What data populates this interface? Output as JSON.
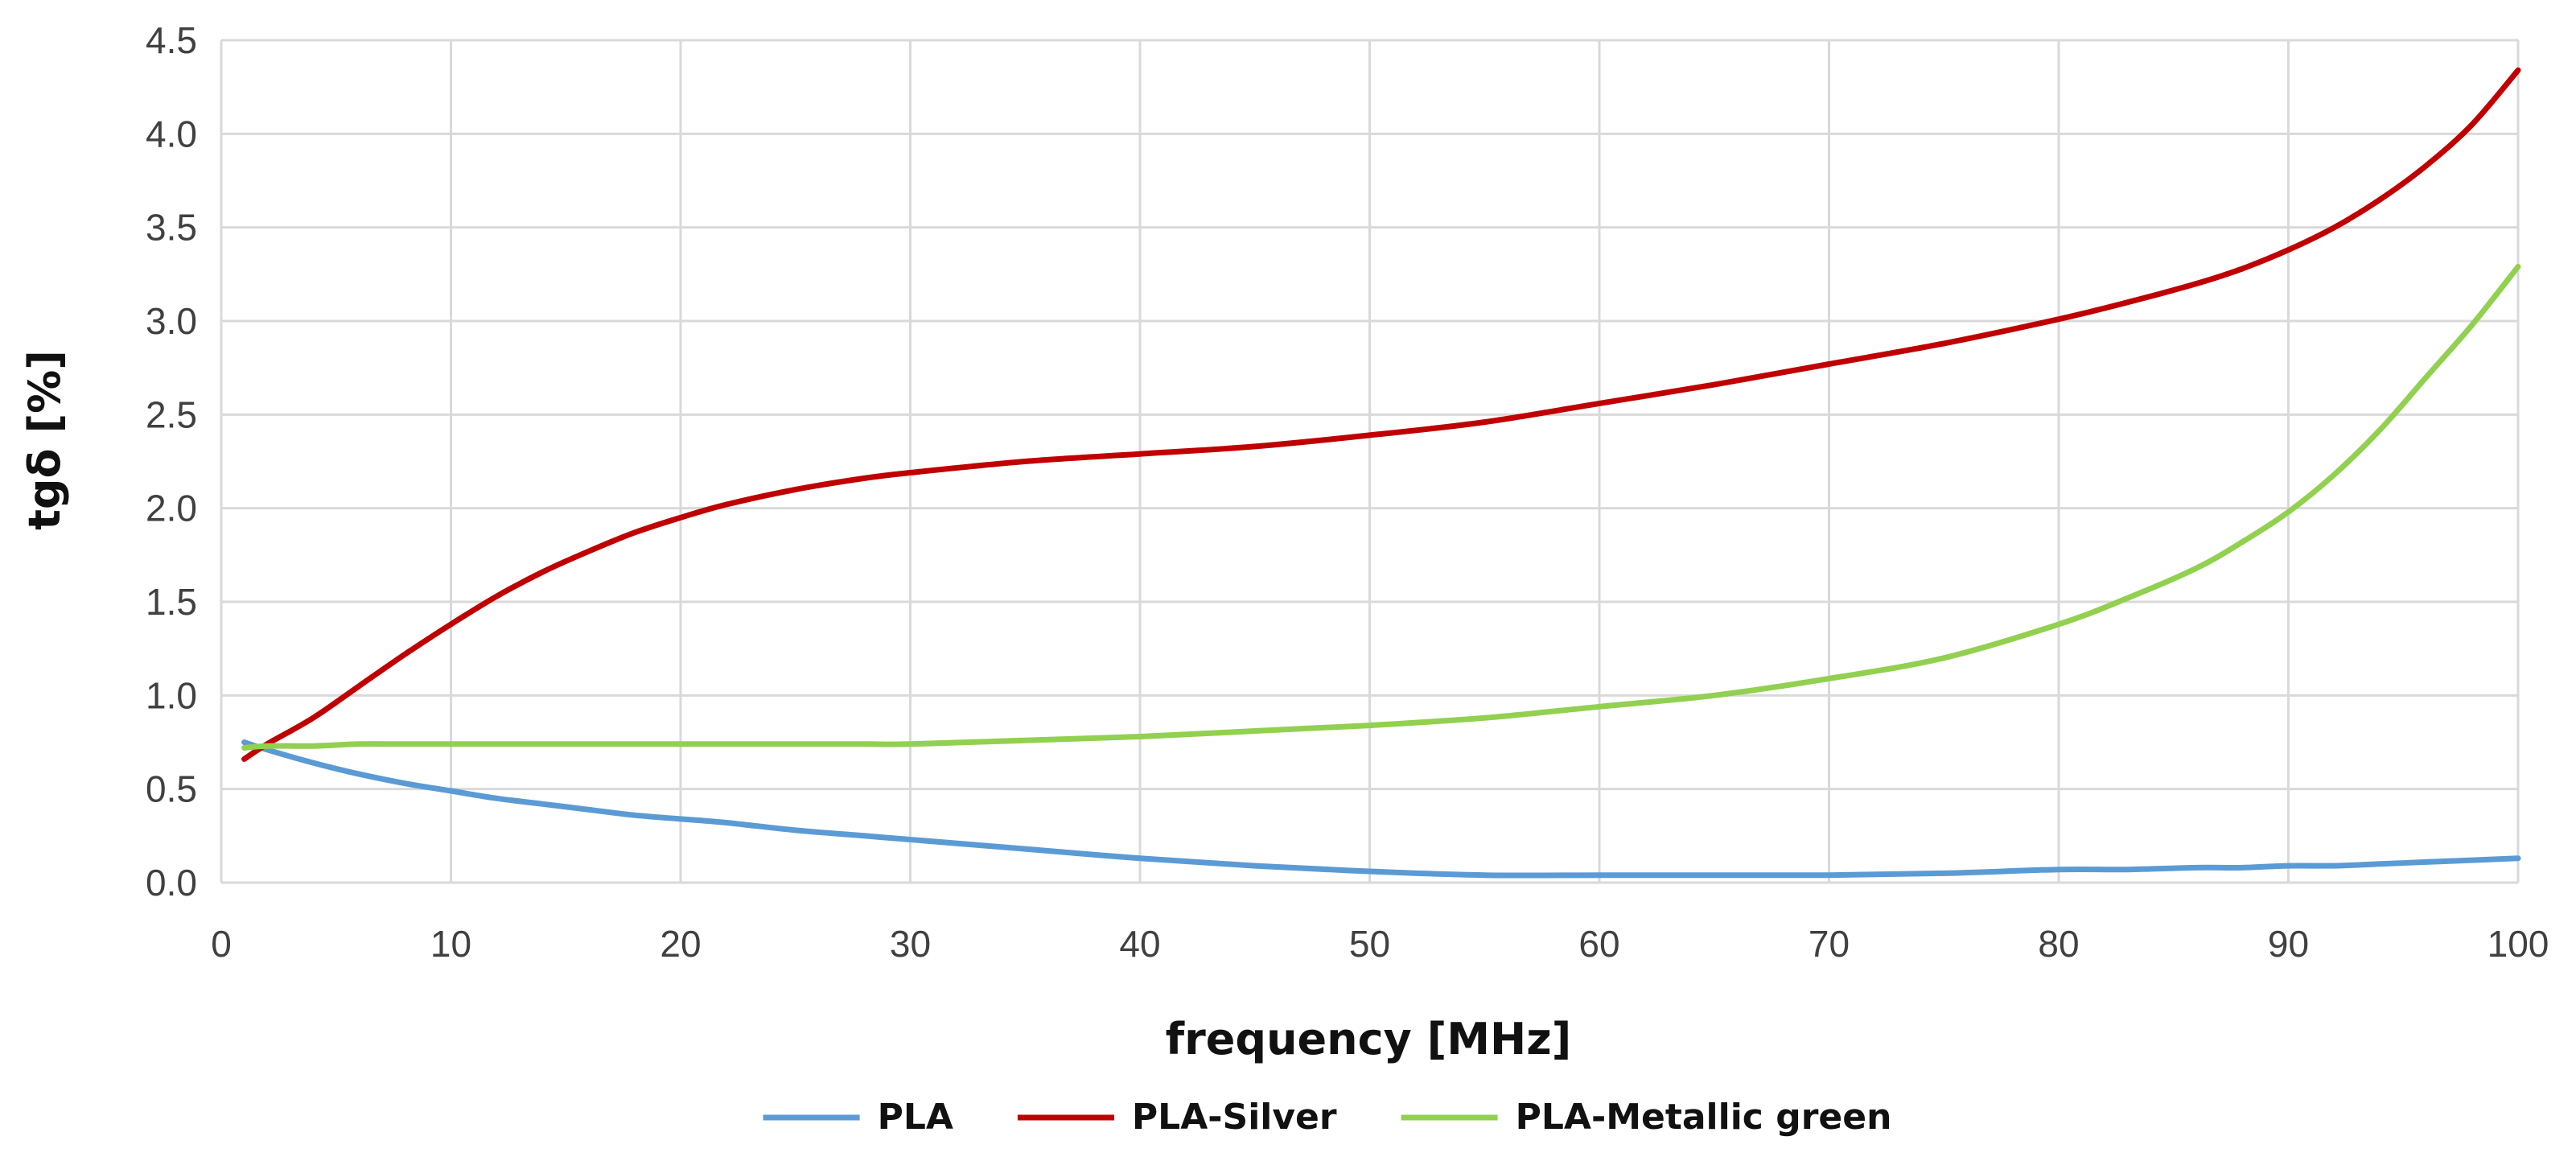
{
  "chart_data": {
    "type": "line",
    "title": "",
    "xlabel": "frequency [MHz]",
    "ylabel": "tgδ [%]",
    "xlim": [
      0,
      100
    ],
    "ylim": [
      0,
      4.5
    ],
    "x_ticks": [
      0,
      10,
      20,
      30,
      40,
      50,
      60,
      70,
      80,
      90,
      100
    ],
    "y_ticks": [
      "0.0",
      "0.5",
      "1.0",
      "1.5",
      "2.0",
      "2.5",
      "3.0",
      "3.5",
      "4.0",
      "4.5"
    ],
    "grid": true,
    "legend_position": "bottom",
    "x": [
      1,
      2,
      4,
      6,
      8,
      10,
      12,
      14,
      16,
      18,
      20,
      22,
      25,
      28,
      30,
      35,
      40,
      45,
      50,
      55,
      60,
      65,
      70,
      75,
      80,
      83,
      86,
      88,
      90,
      92,
      94,
      96,
      98,
      100
    ],
    "series": [
      {
        "name": "PLA",
        "color": "#5B9BD5",
        "values": [
          0.75,
          0.71,
          0.64,
          0.58,
          0.53,
          0.49,
          0.45,
          0.42,
          0.39,
          0.36,
          0.34,
          0.32,
          0.28,
          0.25,
          0.23,
          0.18,
          0.13,
          0.09,
          0.06,
          0.04,
          0.04,
          0.04,
          0.04,
          0.05,
          0.07,
          0.07,
          0.08,
          0.08,
          0.09,
          0.09,
          0.1,
          0.11,
          0.12,
          0.13
        ]
      },
      {
        "name": "PLA-Silver",
        "color": "#C00000",
        "values": [
          0.66,
          0.74,
          0.88,
          1.05,
          1.22,
          1.38,
          1.53,
          1.66,
          1.77,
          1.87,
          1.95,
          2.02,
          2.1,
          2.16,
          2.19,
          2.25,
          2.29,
          2.33,
          2.39,
          2.46,
          2.56,
          2.66,
          2.77,
          2.88,
          3.01,
          3.1,
          3.2,
          3.28,
          3.38,
          3.5,
          3.65,
          3.83,
          4.05,
          4.34
        ]
      },
      {
        "name": "PLA-Metallic green",
        "color": "#92D050",
        "values": [
          0.72,
          0.73,
          0.73,
          0.74,
          0.74,
          0.74,
          0.74,
          0.74,
          0.74,
          0.74,
          0.74,
          0.74,
          0.74,
          0.74,
          0.74,
          0.76,
          0.78,
          0.81,
          0.84,
          0.88,
          0.94,
          1.0,
          1.09,
          1.2,
          1.38,
          1.52,
          1.68,
          1.82,
          1.98,
          2.18,
          2.42,
          2.7,
          2.98,
          3.29
        ]
      }
    ]
  }
}
